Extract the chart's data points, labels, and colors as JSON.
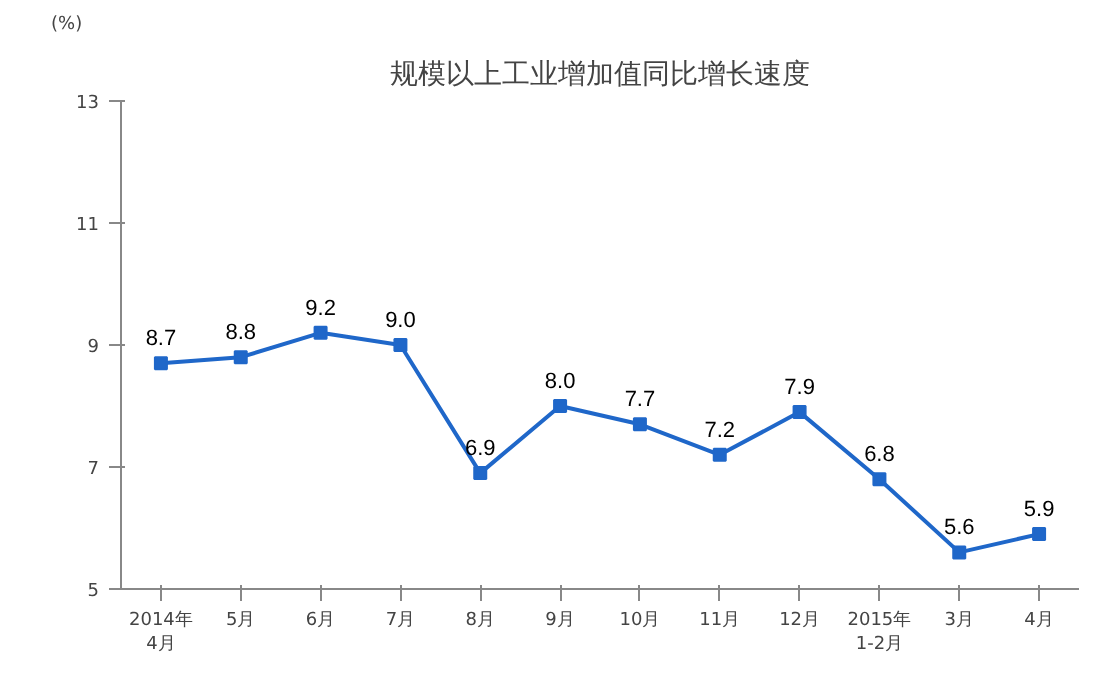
{
  "chart_data": {
    "type": "line",
    "title": "规模以上工业增加值同比增长速度",
    "ylabel": "(%)",
    "categories": [
      "2014年\n4月",
      "5月",
      "6月",
      "7月",
      "8月",
      "9月",
      "10月",
      "11月",
      "12月",
      "2015年\n1-2月",
      "3月",
      "4月"
    ],
    "series": [
      {
        "color": "#1f67c9",
        "values": [
          8.7,
          8.8,
          9.2,
          9.0,
          6.9,
          8.0,
          7.7,
          7.2,
          7.9,
          6.8,
          5.6,
          5.9
        ],
        "value_labels": [
          "8.7",
          "8.8",
          "9.2",
          "9.0",
          "6.9",
          "8.0",
          "7.7",
          "7.2",
          "7.9",
          "6.8",
          "5.6",
          "5.9"
        ]
      }
    ],
    "ylim": [
      5,
      13
    ],
    "yticks": [
      5,
      7,
      9,
      11,
      13
    ],
    "grid": false,
    "marker": "square",
    "line_style": "solid"
  }
}
